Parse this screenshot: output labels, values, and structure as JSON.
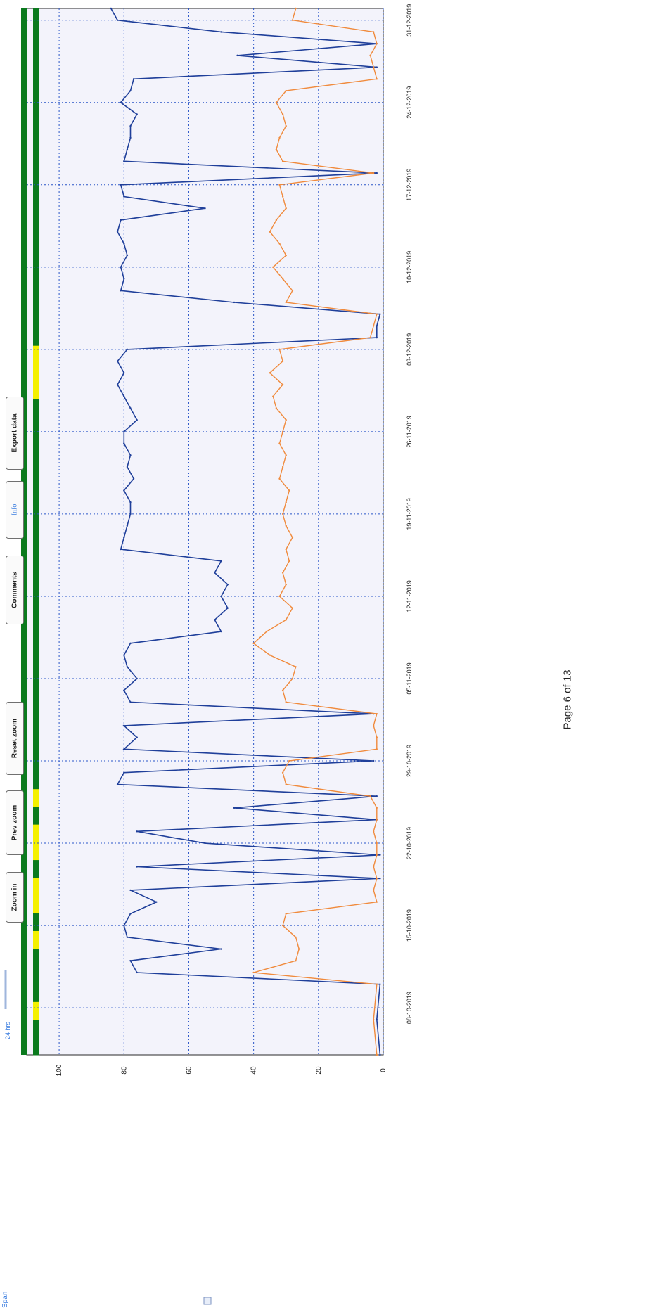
{
  "toolbar": {
    "span_label": "Span",
    "span_value": "24 hrs",
    "buttons": {
      "zoom_in": "Zoom in",
      "prev_zoom": "Prev zoom",
      "reset_zoom": "Reset zoom",
      "comments": "Comments",
      "info": "Info",
      "export": "Export data"
    }
  },
  "chart_data": {
    "type": "line",
    "orientation": "rotated-90-ccw",
    "x_type": "date",
    "x_ticks": [
      "08-10-2019",
      "15-10-2019",
      "22-10-2019",
      "29-10-2019",
      "05-11-2019",
      "12-11-2019",
      "19-11-2019",
      "26-11-2019",
      "03-12-2019",
      "10-12-2019",
      "17-12-2019",
      "24-12-2019",
      "31-12-2019"
    ],
    "xlim": [
      "2019-10-04",
      "2020-01-01"
    ],
    "yticks": [
      0,
      20,
      40,
      60,
      80,
      100
    ],
    "ylim": [
      0,
      110
    ],
    "ylabel": "",
    "grid": true,
    "colors": {
      "primary": "#1f3f9a",
      "secondary": "#f08a3c",
      "status_on": "#0b7a1e",
      "status_off": "#f4f000",
      "grid": "#2a55c8"
    },
    "series": [
      {
        "color": "#1f3f9a",
        "x": [
          "2019-10-04",
          "2019-10-07",
          "2019-10-10",
          "2019-10-11",
          "2019-10-12",
          "2019-10-13",
          "2019-10-14",
          "2019-10-15",
          "2019-10-16",
          "2019-10-17",
          "2019-10-18",
          "2019-10-19",
          "2019-10-20",
          "2019-10-21",
          "2019-10-22",
          "2019-10-23",
          "2019-10-24",
          "2019-10-25",
          "2019-10-26",
          "2019-10-27",
          "2019-10-28",
          "2019-10-29",
          "2019-10-30",
          "2019-10-31",
          "2019-11-01",
          "2019-11-02",
          "2019-11-03",
          "2019-11-04",
          "2019-11-05",
          "2019-11-06",
          "2019-11-07",
          "2019-11-08",
          "2019-11-09",
          "2019-11-10",
          "2019-11-11",
          "2019-11-12",
          "2019-11-13",
          "2019-11-14",
          "2019-11-15",
          "2019-11-16",
          "2019-11-17",
          "2019-11-18",
          "2019-11-19",
          "2019-11-20",
          "2019-11-21",
          "2019-11-22",
          "2019-11-23",
          "2019-11-24",
          "2019-11-25",
          "2019-11-26",
          "2019-11-27",
          "2019-11-28",
          "2019-11-29",
          "2019-11-30",
          "2019-12-01",
          "2019-12-02",
          "2019-12-03",
          "2019-12-04",
          "2019-12-05",
          "2019-12-06",
          "2019-12-07",
          "2019-12-08",
          "2019-12-09",
          "2019-12-10",
          "2019-12-11",
          "2019-12-12",
          "2019-12-13",
          "2019-12-14",
          "2019-12-15",
          "2019-12-16",
          "2019-12-17",
          "2019-12-18",
          "2019-12-19",
          "2019-12-20",
          "2019-12-21",
          "2019-12-22",
          "2019-12-23",
          "2019-12-24",
          "2019-12-25",
          "2019-12-26",
          "2019-12-27",
          "2019-12-28",
          "2019-12-29",
          "2019-12-30",
          "2019-12-31",
          "2020-01-01"
        ],
        "y": [
          1,
          2,
          1,
          76,
          78,
          50,
          79,
          80,
          78,
          70,
          78,
          1,
          76,
          1,
          55,
          76,
          2,
          46,
          2,
          82,
          80,
          3,
          80,
          76,
          80,
          3,
          78,
          80,
          76,
          79,
          80,
          78,
          50,
          52,
          48,
          50,
          48,
          52,
          50,
          81,
          80,
          79,
          78,
          78,
          80,
          77,
          79,
          78,
          80,
          80,
          76,
          78,
          80,
          82,
          80,
          82,
          79,
          2,
          2,
          1,
          46,
          81,
          80,
          81,
          79,
          80,
          82,
          81,
          55,
          80,
          81,
          2,
          80,
          79,
          78,
          78,
          76,
          81,
          78,
          77,
          2,
          45,
          2,
          50,
          82,
          84
        ]
      },
      {
        "color": "#f08a3c",
        "x": [
          "2019-10-04",
          "2019-10-07",
          "2019-10-10",
          "2019-10-11",
          "2019-10-12",
          "2019-10-13",
          "2019-10-14",
          "2019-10-15",
          "2019-10-16",
          "2019-10-17",
          "2019-10-18",
          "2019-10-19",
          "2019-10-20",
          "2019-10-21",
          "2019-10-22",
          "2019-10-23",
          "2019-10-24",
          "2019-10-25",
          "2019-10-26",
          "2019-10-27",
          "2019-10-28",
          "2019-10-29",
          "2019-10-30",
          "2019-10-31",
          "2019-11-01",
          "2019-11-02",
          "2019-11-03",
          "2019-11-04",
          "2019-11-05",
          "2019-11-06",
          "2019-11-07",
          "2019-11-08",
          "2019-11-09",
          "2019-11-10",
          "2019-11-11",
          "2019-11-12",
          "2019-11-13",
          "2019-11-14",
          "2019-11-15",
          "2019-11-16",
          "2019-11-17",
          "2019-11-18",
          "2019-11-19",
          "2019-11-20",
          "2019-11-21",
          "2019-11-22",
          "2019-11-23",
          "2019-11-24",
          "2019-11-25",
          "2019-11-26",
          "2019-11-27",
          "2019-11-28",
          "2019-11-29",
          "2019-11-30",
          "2019-12-01",
          "2019-12-02",
          "2019-12-03",
          "2019-12-04",
          "2019-12-05",
          "2019-12-06",
          "2019-12-07",
          "2019-12-08",
          "2019-12-09",
          "2019-12-10",
          "2019-12-11",
          "2019-12-12",
          "2019-12-13",
          "2019-12-14",
          "2019-12-15",
          "2019-12-16",
          "2019-12-17",
          "2019-12-18",
          "2019-12-19",
          "2019-12-20",
          "2019-12-21",
          "2019-12-22",
          "2019-12-23",
          "2019-12-24",
          "2019-12-25",
          "2019-12-26",
          "2019-12-27",
          "2019-12-28",
          "2019-12-29",
          "2019-12-30",
          "2019-12-31",
          "2020-01-01"
        ],
        "y": [
          2,
          3,
          2,
          40,
          27,
          26,
          27,
          31,
          30,
          2,
          3,
          2,
          3,
          2,
          2,
          3,
          2,
          2,
          4,
          30,
          31,
          29,
          2,
          2,
          3,
          2,
          30,
          31,
          28,
          27,
          35,
          40,
          36,
          30,
          28,
          32,
          30,
          31,
          29,
          30,
          28,
          30,
          31,
          30,
          29,
          32,
          31,
          30,
          32,
          31,
          30,
          33,
          34,
          31,
          35,
          31,
          32,
          4,
          3,
          2,
          30,
          28,
          31,
          34,
          30,
          32,
          35,
          33,
          30,
          31,
          32,
          3,
          31,
          33,
          32,
          30,
          31,
          33,
          30,
          2,
          3,
          4,
          2,
          3,
          28,
          27
        ]
      }
    ],
    "status_strip": [
      1,
      1,
      0,
      1,
      1,
      1,
      0,
      1,
      0,
      0,
      1,
      0,
      0,
      1,
      0,
      1,
      1,
      1,
      1,
      1,
      1,
      1,
      1,
      1,
      1,
      1,
      1,
      1,
      1,
      1,
      1,
      1,
      1,
      1,
      1,
      1,
      1,
      0,
      0,
      0,
      1,
      1,
      1,
      1,
      1,
      1,
      1,
      1,
      1,
      1,
      1,
      1,
      1,
      1,
      1,
      1,
      1,
      1,
      1
    ]
  },
  "page_footer": "Page 6 of 13"
}
